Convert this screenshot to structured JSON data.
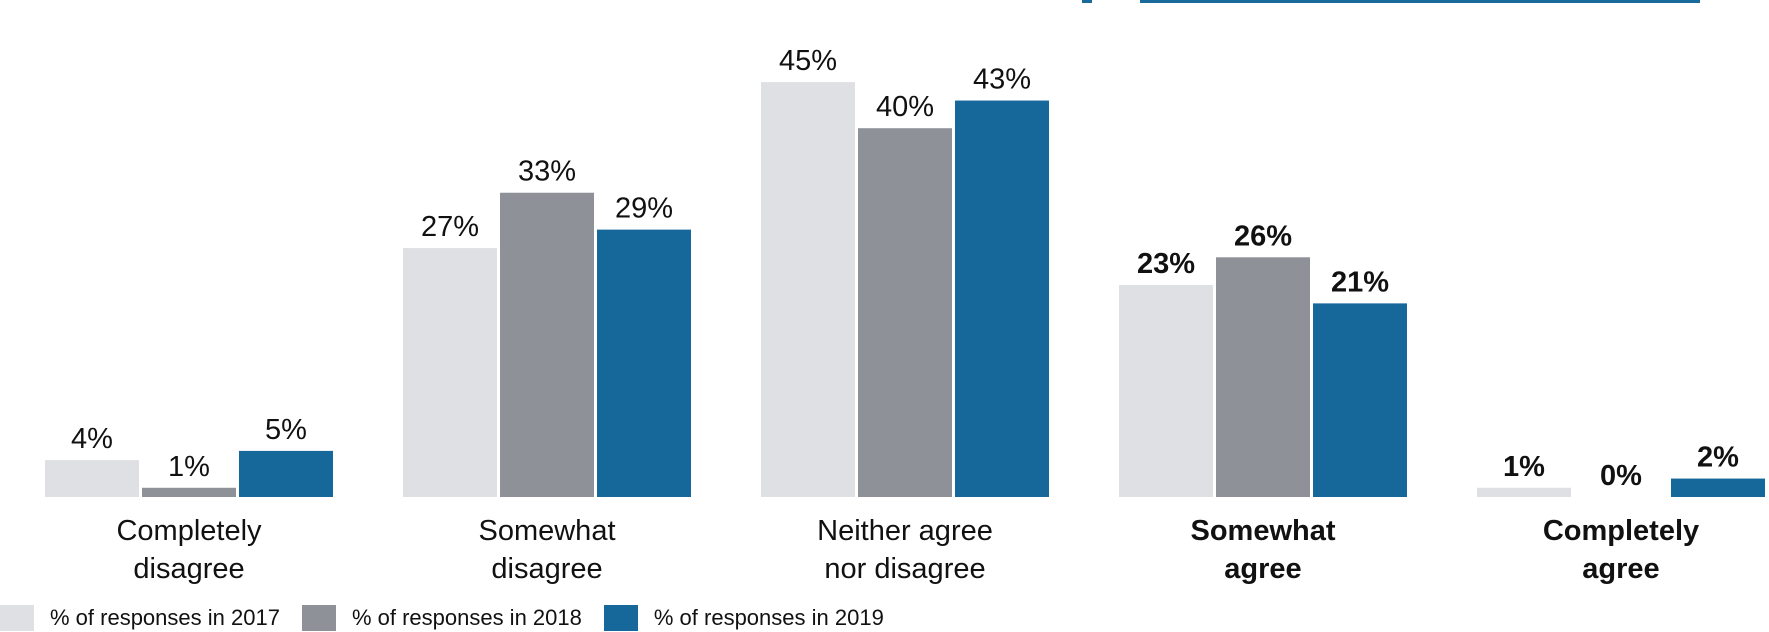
{
  "chart_data": {
    "type": "bar",
    "categories": [
      [
        "Completely",
        "disagree"
      ],
      [
        "Somewhat",
        "disagree"
      ],
      [
        "Neither agree",
        "nor disagree"
      ],
      [
        "Somewhat",
        "agree"
      ],
      [
        "Completely",
        "agree"
      ]
    ],
    "bold_categories": [
      false,
      false,
      false,
      true,
      true
    ],
    "series": [
      {
        "name": "% of responses in 2017",
        "values": [
          4,
          27,
          45,
          23,
          1
        ],
        "color": "#dfe0e3"
      },
      {
        "name": "% of responses in 2018",
        "values": [
          1,
          33,
          40,
          26,
          0
        ],
        "color": "#8e9298"
      },
      {
        "name": "% of responses in 2019",
        "values": [
          5,
          29,
          43,
          21,
          2
        ],
        "color": "#17689a"
      }
    ],
    "value_suffix": "%",
    "ylim": [
      0,
      45
    ],
    "grid": false,
    "legend_position": "bottom-left",
    "accent_color": "#1a6b9b"
  }
}
